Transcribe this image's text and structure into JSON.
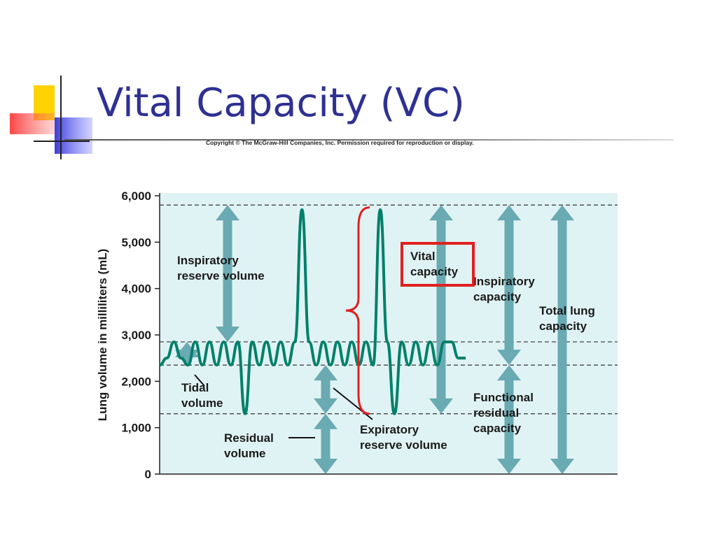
{
  "slide": {
    "title": "Vital Capacity (VC)",
    "copyright": "Copyright © The McGraw-Hill Companies, Inc. Permission required for reproduction or display."
  },
  "colors": {
    "title": "#2e3192",
    "plot_bg": "#e0f3f4",
    "trace": "#00806a",
    "arrow": "#6aaab2",
    "highlight": "#e02020"
  },
  "chart_data": {
    "type": "line",
    "ylabel": "Lung volume in milliliters (mL)",
    "ylim": [
      0,
      6000
    ],
    "yticks": [
      {
        "value": 0,
        "label": "0"
      },
      {
        "value": 1000,
        "label": "1,000"
      },
      {
        "value": 2000,
        "label": "2,000"
      },
      {
        "value": 3000,
        "label": "3,000"
      },
      {
        "value": 4000,
        "label": "4,000"
      },
      {
        "value": 5000,
        "label": "5,000"
      },
      {
        "value": 6000,
        "label": "6,000"
      }
    ],
    "reference_levels": [
      {
        "name": "max",
        "value": 5800
      },
      {
        "name": "end_tidal_inspiration",
        "value": 2850
      },
      {
        "name": "end_tidal_expiration",
        "value": 2350
      },
      {
        "name": "max_expiration",
        "value": 1300
      }
    ],
    "trace": [
      [
        0,
        2350
      ],
      [
        10,
        2500
      ],
      [
        20,
        2850
      ],
      [
        30,
        2500
      ],
      [
        40,
        2350
      ],
      [
        50,
        2850
      ],
      [
        60,
        2350
      ],
      [
        70,
        2850
      ],
      [
        80,
        2350
      ],
      [
        90,
        2850
      ],
      [
        100,
        2350
      ],
      [
        110,
        2850
      ],
      [
        120,
        1300
      ],
      [
        130,
        2850
      ],
      [
        140,
        2350
      ],
      [
        150,
        2850
      ],
      [
        160,
        2350
      ],
      [
        170,
        2850
      ],
      [
        180,
        2350
      ],
      [
        190,
        2850
      ],
      [
        200,
        5700
      ],
      [
        210,
        2850
      ],
      [
        220,
        2350
      ],
      [
        230,
        2850
      ],
      [
        240,
        2350
      ],
      [
        250,
        2850
      ],
      [
        260,
        2350
      ],
      [
        270,
        2850
      ],
      [
        280,
        2350
      ],
      [
        290,
        2850
      ],
      [
        300,
        2350
      ],
      [
        310,
        5700
      ],
      [
        320,
        2850
      ],
      [
        330,
        1300
      ],
      [
        340,
        2850
      ],
      [
        350,
        2350
      ],
      [
        360,
        2850
      ],
      [
        370,
        2350
      ],
      [
        380,
        2850
      ],
      [
        390,
        2350
      ],
      [
        400,
        2850
      ],
      [
        410,
        2850
      ],
      [
        420,
        2500
      ],
      [
        430,
        2500
      ]
    ],
    "annotations": {
      "irv": [
        "Inspiratory",
        "reserve volume"
      ],
      "tidal": [
        "Tidal",
        "volume"
      ],
      "residual": [
        "Residual",
        "volume"
      ],
      "erv": [
        "Expiratory",
        "reserve volume"
      ],
      "vital": [
        "Vital",
        "capacity"
      ],
      "ic": [
        "Inspiratory",
        "capacity"
      ],
      "tlc": [
        "Total lung",
        "capacity"
      ],
      "frc": [
        "Functional",
        "residual",
        "capacity"
      ]
    }
  }
}
